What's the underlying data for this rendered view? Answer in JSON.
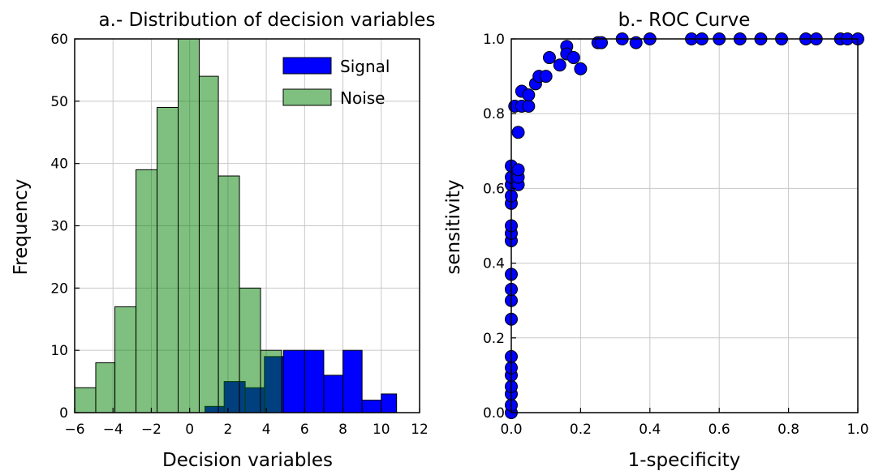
{
  "chart_data": [
    {
      "type": "bar",
      "subtype": "overlapping-histogram",
      "title": "a.- Distribution of decision variables",
      "xlabel": "Decision variables",
      "ylabel": "Frequency",
      "xlim": [
        -6,
        12
      ],
      "ylim": [
        0,
        60
      ],
      "xticks": [
        "−6",
        "−4",
        "−2",
        "0",
        "2",
        "4",
        "6",
        "8",
        "10",
        "12"
      ],
      "yticks": [
        "0",
        "10",
        "20",
        "30",
        "40",
        "50",
        "60"
      ],
      "grid": true,
      "legend_position": "top-right",
      "series": [
        {
          "name": "Signal",
          "color": "#0000ff",
          "bins": [
            {
              "x0": 0.8,
              "x1": 1.8,
              "value": 1
            },
            {
              "x0": 1.8,
              "x1": 2.9,
              "value": 5
            },
            {
              "x0": 2.9,
              "x1": 3.9,
              "value": 4
            },
            {
              "x0": 3.9,
              "x1": 4.9,
              "value": 9
            },
            {
              "x0": 4.9,
              "x1": 6.0,
              "value": 10
            },
            {
              "x0": 6.0,
              "x1": 7.0,
              "value": 10
            },
            {
              "x0": 7.0,
              "x1": 8.0,
              "value": 6
            },
            {
              "x0": 8.0,
              "x1": 9.0,
              "value": 10
            },
            {
              "x0": 9.0,
              "x1": 10.0,
              "value": 2
            },
            {
              "x0": 10.0,
              "x1": 10.8,
              "value": 3
            }
          ]
        },
        {
          "name": "Noise",
          "color": "#7fbf7f",
          "bins": [
            {
              "x0": -6.0,
              "x1": -4.9,
              "value": 4
            },
            {
              "x0": -4.9,
              "x1": -3.9,
              "value": 8
            },
            {
              "x0": -3.9,
              "x1": -2.8,
              "value": 17
            },
            {
              "x0": -2.8,
              "x1": -1.7,
              "value": 39
            },
            {
              "x0": -1.7,
              "x1": -0.6,
              "value": 49
            },
            {
              "x0": -0.6,
              "x1": 0.5,
              "value": 60
            },
            {
              "x0": 0.5,
              "x1": 1.5,
              "value": 54
            },
            {
              "x0": 1.5,
              "x1": 2.6,
              "value": 38
            },
            {
              "x0": 2.6,
              "x1": 3.7,
              "value": 20
            },
            {
              "x0": 3.7,
              "x1": 4.8,
              "value": 10
            }
          ]
        }
      ]
    },
    {
      "type": "scatter",
      "title": "b.- ROC Curve",
      "xlabel": "1-specificity",
      "ylabel": "sensitivity",
      "xlim": [
        0.0,
        1.0
      ],
      "ylim": [
        0.0,
        1.0
      ],
      "xticks": [
        "0.0",
        "0.2",
        "0.4",
        "0.6",
        "0.8",
        "1.0"
      ],
      "yticks": [
        "0.0",
        "0.2",
        "0.4",
        "0.6",
        "0.8",
        "1.0"
      ],
      "grid": true,
      "series": [
        {
          "color": "#0000ff",
          "points": [
            {
              "x": 0.0,
              "y": 0.0
            },
            {
              "x": 0.0,
              "y": 0.02
            },
            {
              "x": 0.0,
              "y": 0.05
            },
            {
              "x": 0.0,
              "y": 0.07
            },
            {
              "x": 0.0,
              "y": 0.1
            },
            {
              "x": 0.0,
              "y": 0.12
            },
            {
              "x": 0.0,
              "y": 0.15
            },
            {
              "x": 0.0,
              "y": 0.25
            },
            {
              "x": 0.0,
              "y": 0.3
            },
            {
              "x": 0.0,
              "y": 0.33
            },
            {
              "x": 0.0,
              "y": 0.37
            },
            {
              "x": 0.0,
              "y": 0.46
            },
            {
              "x": 0.0,
              "y": 0.48
            },
            {
              "x": 0.0,
              "y": 0.5
            },
            {
              "x": 0.0,
              "y": 0.56
            },
            {
              "x": 0.0,
              "y": 0.58
            },
            {
              "x": 0.0,
              "y": 0.61
            },
            {
              "x": 0.0,
              "y": 0.63
            },
            {
              "x": 0.0,
              "y": 0.66
            },
            {
              "x": 0.01,
              "y": 0.82
            },
            {
              "x": 0.02,
              "y": 0.61
            },
            {
              "x": 0.02,
              "y": 0.63
            },
            {
              "x": 0.02,
              "y": 0.65
            },
            {
              "x": 0.02,
              "y": 0.75
            },
            {
              "x": 0.03,
              "y": 0.82
            },
            {
              "x": 0.03,
              "y": 0.86
            },
            {
              "x": 0.05,
              "y": 0.82
            },
            {
              "x": 0.05,
              "y": 0.85
            },
            {
              "x": 0.07,
              "y": 0.88
            },
            {
              "x": 0.08,
              "y": 0.9
            },
            {
              "x": 0.1,
              "y": 0.9
            },
            {
              "x": 0.11,
              "y": 0.95
            },
            {
              "x": 0.14,
              "y": 0.93
            },
            {
              "x": 0.16,
              "y": 0.98
            },
            {
              "x": 0.16,
              "y": 0.96
            },
            {
              "x": 0.18,
              "y": 0.95
            },
            {
              "x": 0.2,
              "y": 0.92
            },
            {
              "x": 0.25,
              "y": 0.99
            },
            {
              "x": 0.26,
              "y": 0.99
            },
            {
              "x": 0.32,
              "y": 1.0
            },
            {
              "x": 0.36,
              "y": 0.99
            },
            {
              "x": 0.4,
              "y": 1.0
            },
            {
              "x": 0.52,
              "y": 1.0
            },
            {
              "x": 0.55,
              "y": 1.0
            },
            {
              "x": 0.6,
              "y": 1.0
            },
            {
              "x": 0.66,
              "y": 1.0
            },
            {
              "x": 0.72,
              "y": 1.0
            },
            {
              "x": 0.78,
              "y": 1.0
            },
            {
              "x": 0.85,
              "y": 1.0
            },
            {
              "x": 0.88,
              "y": 1.0
            },
            {
              "x": 0.95,
              "y": 1.0
            },
            {
              "x": 0.97,
              "y": 1.0
            },
            {
              "x": 1.0,
              "y": 1.0
            }
          ]
        }
      ]
    }
  ]
}
